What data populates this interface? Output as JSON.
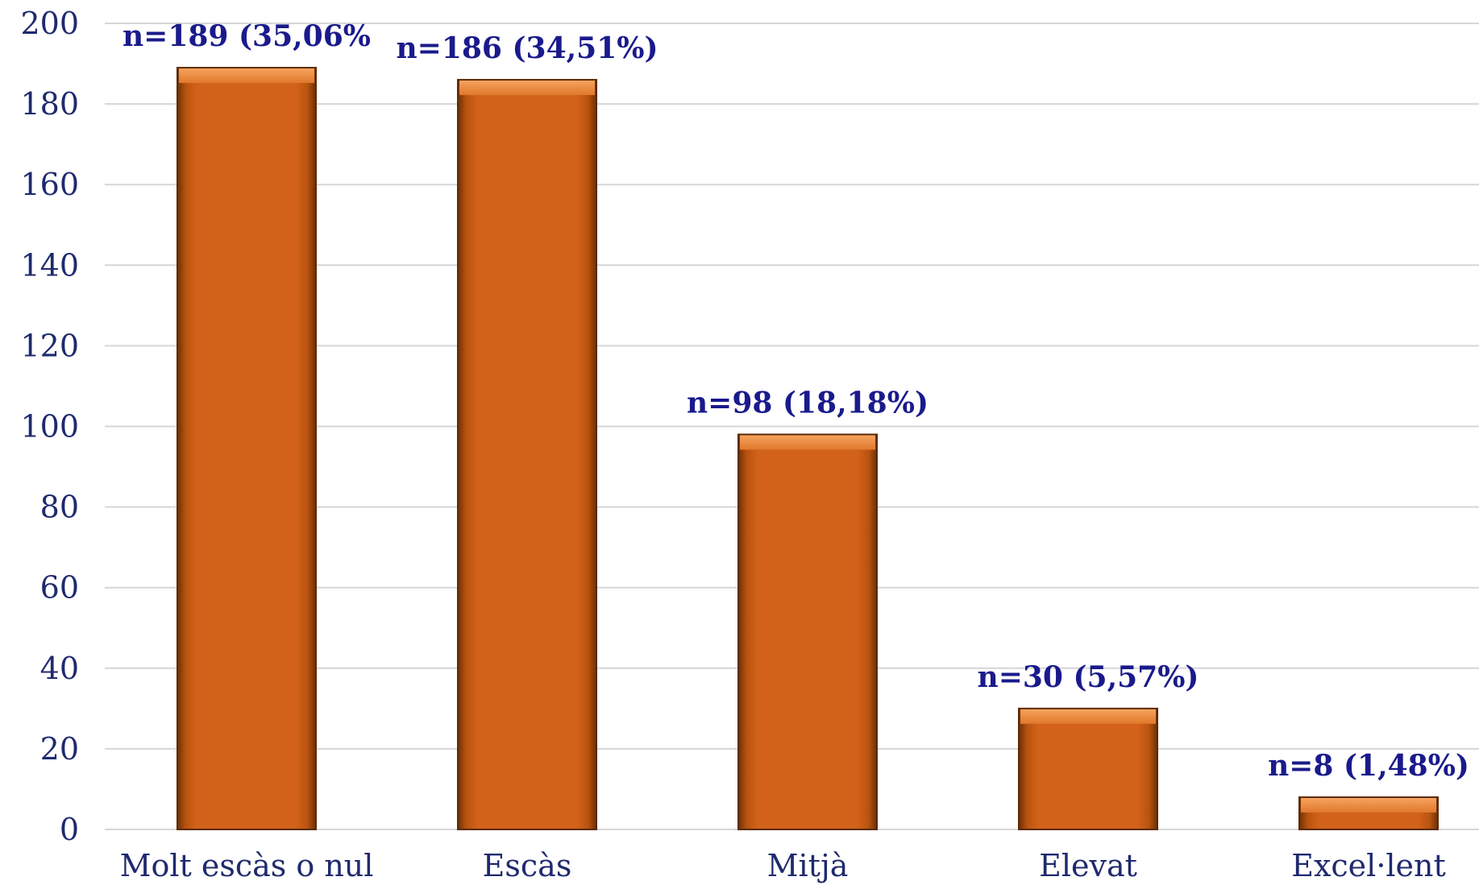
{
  "chart_data": {
    "type": "bar",
    "categories": [
      "Molt escàs o nul",
      "Escàs",
      "Mitjà",
      "Elevat",
      "Excel·lent"
    ],
    "values": [
      189,
      186,
      98,
      30,
      8
    ],
    "data_labels": [
      "n=189 (35,06%",
      "n=186 (34,51%)",
      "n=98 (18,18%)",
      "n=30 (5,57%)",
      "n=8 (1,48%)"
    ],
    "title": "",
    "xlabel": "",
    "ylabel": "",
    "ylim": [
      0,
      200
    ],
    "yticks": [
      "0",
      "20",
      "40",
      "60",
      "80",
      "100",
      "120",
      "140",
      "160",
      "180",
      "200"
    ],
    "grid": true,
    "legend": "none",
    "colors": {
      "bar": "#d2621a",
      "bar_edge": "#5a2a08",
      "bar_highlight": "#f08a3a",
      "label_text": "#1a1a8c",
      "axis_text": "#1f2a6e",
      "grid": "#d6d6d6"
    }
  }
}
